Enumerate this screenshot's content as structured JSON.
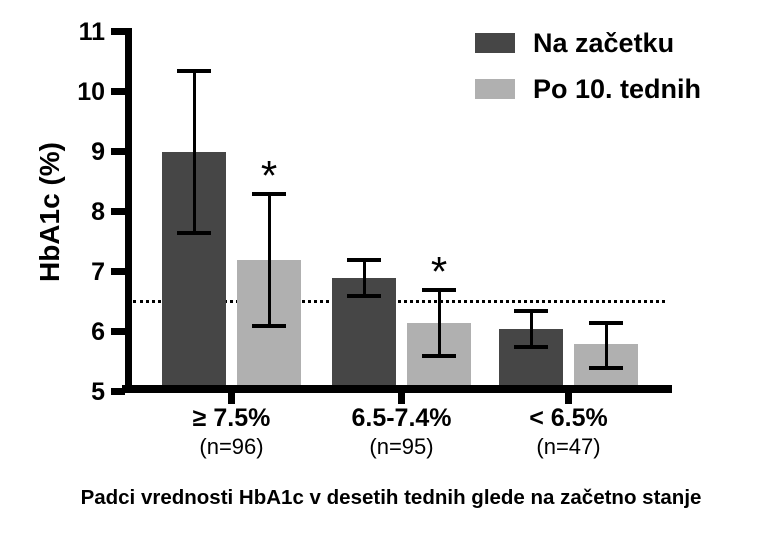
{
  "figure": {
    "background": "#ffffff",
    "axis_color": "#000000"
  },
  "chart_data": {
    "type": "bar",
    "title": "",
    "ylabel": "HbA1c (%)",
    "xlabel": "",
    "ylim": [
      5,
      11
    ],
    "yticks": [
      5,
      6,
      7,
      8,
      9,
      10,
      11
    ],
    "grid": false,
    "legend_position": "top-right",
    "reference_line": {
      "y": 6.5,
      "style": "dotted"
    },
    "categories": [
      "≥ 7.5%",
      "6.5-7.4%",
      "< 6.5%"
    ],
    "category_sublabels": [
      "(n=96)",
      "(n=95)",
      "(n=47)"
    ],
    "series": [
      {
        "name": "Na začetku",
        "color": "#464646",
        "values": [
          9.0,
          6.9,
          6.05
        ],
        "error_low": [
          7.65,
          6.6,
          5.75
        ],
        "error_high": [
          10.35,
          7.2,
          6.35
        ],
        "significance": [
          "",
          "",
          ""
        ]
      },
      {
        "name": "Po 10. tednih",
        "color": "#b0b0b0",
        "values": [
          7.2,
          6.15,
          5.8
        ],
        "error_low": [
          6.1,
          5.6,
          5.4
        ],
        "error_high": [
          8.3,
          6.7,
          6.15
        ],
        "significance": [
          "*",
          "*",
          ""
        ]
      }
    ],
    "caption": "Padci vrednosti HbA1c v desetih tednih glede na začetno stanje"
  }
}
